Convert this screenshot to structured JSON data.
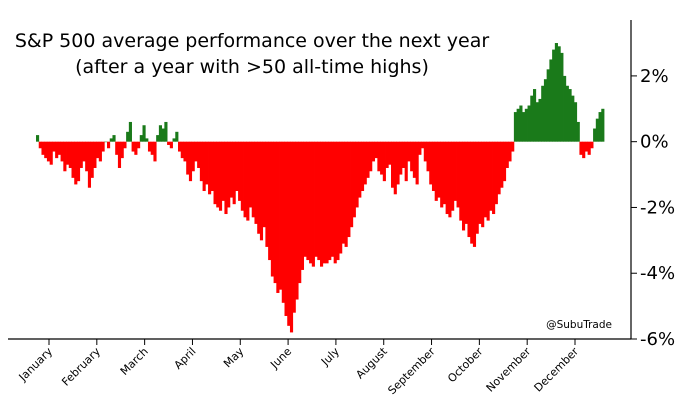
{
  "chart_data": {
    "type": "bar",
    "title_lines": [
      "S&P 500 average performance over the next year",
      "(after a year with >50 all-time highs)"
    ],
    "watermark": "@SubuTrade",
    "y_axis_side": "right",
    "ylim": [
      -6.0,
      3.7
    ],
    "y_ticks": [
      2,
      0,
      -2,
      -4,
      -6
    ],
    "y_tick_labels": [
      "2%",
      "0%",
      "-2%",
      "-4%",
      "-6%"
    ],
    "x_tick_labels": [
      "January",
      "February",
      "March",
      "April",
      "May",
      "June",
      "July",
      "August",
      "September",
      "October",
      "November",
      "December"
    ],
    "colors": {
      "positive": "#1a7a1a",
      "negative": "#ff0000"
    },
    "series": [
      {
        "values": [
          0.2,
          -0.2,
          -0.4,
          -0.5,
          -0.6,
          -0.7,
          -0.3,
          -0.5,
          -0.4,
          -0.6,
          -0.9,
          -0.7,
          -0.8,
          -1.1,
          -1.3,
          -1.2,
          -0.8,
          -0.6,
          -0.9,
          -1.4,
          -1.1,
          -0.8,
          -0.5,
          -0.6,
          -0.3,
          0.0,
          -0.2,
          0.1,
          0.2,
          -0.4,
          -0.8,
          -0.5,
          -0.2,
          0.3,
          0.6,
          -0.3,
          -0.4,
          -0.2,
          0.2,
          0.5,
          0.1,
          -0.3,
          -0.4,
          -0.6,
          0.2,
          0.5,
          0.4,
          0.6,
          -0.1,
          -0.2,
          0.1,
          0.3,
          -0.3,
          -0.5,
          -0.6,
          -1.0,
          -1.2,
          -0.9,
          -0.6,
          -0.8,
          -1.2,
          -1.5,
          -1.3,
          -1.6,
          -1.5,
          -1.9,
          -2.0,
          -2.1,
          -1.8,
          -2.2,
          -2.0,
          -1.7,
          -1.9,
          -1.5,
          -1.8,
          -2.1,
          -2.3,
          -2.4,
          -2.0,
          -2.3,
          -2.5,
          -2.8,
          -3.0,
          -2.6,
          -3.2,
          -3.6,
          -4.1,
          -4.3,
          -4.6,
          -4.5,
          -4.9,
          -5.3,
          -5.6,
          -5.8,
          -5.2,
          -4.8,
          -4.3,
          -3.9,
          -3.5,
          -3.6,
          -3.7,
          -3.8,
          -3.5,
          -3.6,
          -3.8,
          -3.7,
          -3.7,
          -3.6,
          -3.5,
          -3.7,
          -3.6,
          -3.4,
          -3.1,
          -3.2,
          -2.9,
          -2.6,
          -2.3,
          -2.0,
          -1.7,
          -1.5,
          -1.3,
          -1.1,
          -0.9,
          -0.6,
          -0.5,
          -0.9,
          -1.0,
          -1.2,
          -0.8,
          -0.7,
          -1.4,
          -1.6,
          -1.3,
          -1.0,
          -0.8,
          -1.2,
          -0.6,
          -0.9,
          -1.1,
          -1.3,
          -0.4,
          -0.2,
          -0.6,
          -0.9,
          -1.3,
          -1.5,
          -1.8,
          -1.7,
          -2.0,
          -1.9,
          -2.2,
          -2.3,
          -2.1,
          -1.8,
          -2.0,
          -2.4,
          -2.7,
          -2.5,
          -2.9,
          -3.1,
          -3.2,
          -2.8,
          -2.5,
          -2.6,
          -2.3,
          -2.4,
          -2.1,
          -2.2,
          -1.9,
          -1.6,
          -1.4,
          -1.2,
          -0.8,
          -0.6,
          -0.3,
          0.9,
          1.0,
          1.1,
          0.9,
          1.0,
          1.1,
          1.4,
          1.6,
          1.2,
          1.3,
          1.7,
          1.9,
          2.2,
          2.5,
          2.8,
          3.0,
          2.9,
          2.7,
          2.0,
          1.7,
          1.6,
          1.4,
          1.2,
          0.6,
          -0.4,
          -0.5,
          -0.3,
          -0.4,
          -0.2,
          0.4,
          0.7,
          0.9,
          1.0
        ]
      }
    ]
  }
}
